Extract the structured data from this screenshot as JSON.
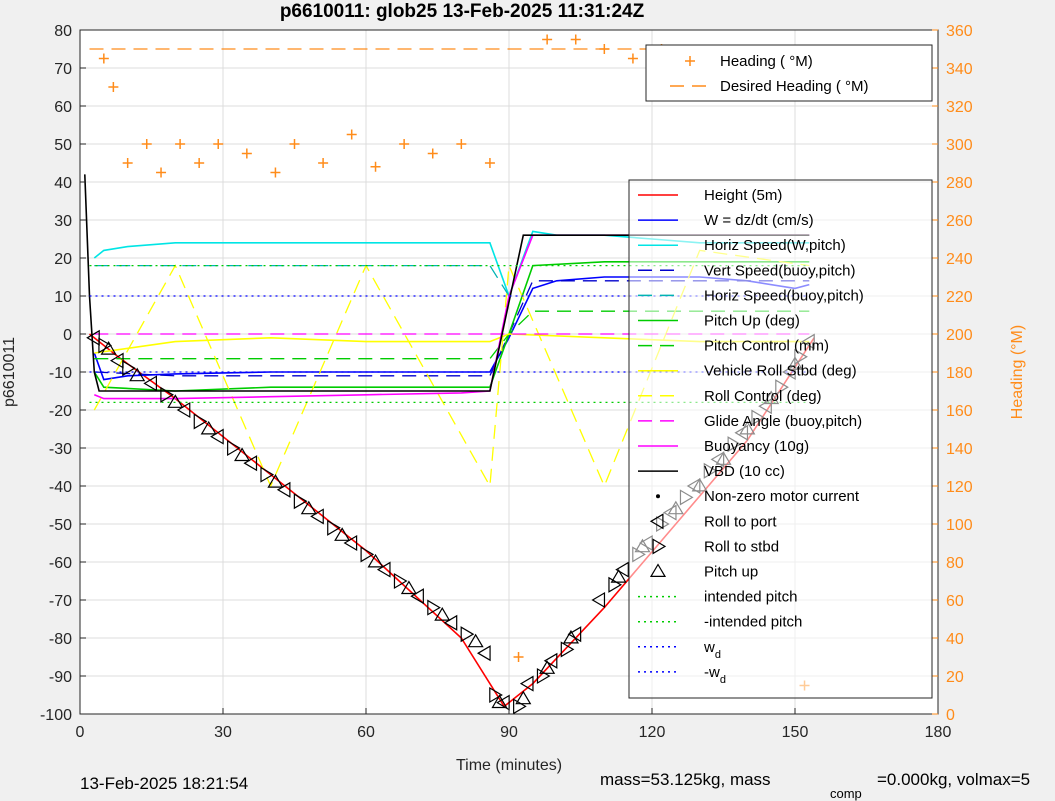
{
  "chart_data": {
    "type": "line",
    "title": "p6610011: glob25 13-Feb-2025 11:31:24Z",
    "xlabel": "Time (minutes)",
    "ylabel": "p6610011",
    "y2label": "Heading (°M)",
    "xlim": [
      0,
      180
    ],
    "ylim": [
      -100,
      80
    ],
    "y2lim": [
      0,
      360
    ],
    "x_ticks": [
      "0",
      "30",
      "60",
      "90",
      "120",
      "150",
      "180"
    ],
    "y_ticks": [
      "-100",
      "-90",
      "-80",
      "-70",
      "-60",
      "-50",
      "-40",
      "-30",
      "-20",
      "-10",
      "0",
      "10",
      "20",
      "30",
      "40",
      "50",
      "60",
      "70",
      "80"
    ],
    "y2_ticks": [
      "0",
      "20",
      "40",
      "60",
      "80",
      "100",
      "120",
      "140",
      "160",
      "180",
      "200",
      "220",
      "240",
      "260",
      "280",
      "300",
      "320",
      "340",
      "360"
    ],
    "grid": true,
    "series": [
      {
        "name": "Height (5m)",
        "color": "#ff0000",
        "style": "solid",
        "x": [
          2,
          8,
          20,
          40,
          60,
          80,
          89,
          95,
          110,
          125,
          140,
          154
        ],
        "y": [
          0,
          -6,
          -17,
          -37,
          -57,
          -80,
          -98,
          -92,
          -72,
          -50,
          -28,
          -1
        ]
      },
      {
        "name": "W = dz/dt (cm/s)",
        "color": "#0000ff",
        "style": "solid",
        "x": [
          3,
          5,
          10,
          20,
          40,
          60,
          80,
          86,
          90,
          95,
          100,
          110,
          120,
          130,
          140,
          150,
          153
        ],
        "y": [
          -5,
          -12,
          -11,
          -10.5,
          -10,
          -10,
          -10,
          -10,
          -1,
          12,
          14,
          15,
          15,
          15,
          14,
          12,
          13
        ]
      },
      {
        "name": "Horiz Speed(W,pitch)",
        "color": "#00e5e5",
        "style": "solid",
        "x": [
          3,
          5,
          10,
          20,
          40,
          60,
          80,
          86,
          90,
          95,
          100,
          110,
          120,
          130,
          140,
          150,
          153
        ],
        "y": [
          20,
          22,
          23,
          24,
          24,
          24,
          24,
          24,
          10,
          27,
          26,
          26,
          25,
          24,
          24,
          24,
          24
        ]
      },
      {
        "name": "Vert Speed(buoy,pitch)",
        "color": "#0000cc",
        "style": "dashed",
        "x": [
          3,
          20,
          86,
          90,
          95,
          153
        ],
        "y": [
          -10,
          -11,
          -11,
          0,
          14,
          14
        ]
      },
      {
        "name": "Horiz Speed(buoy,pitch)",
        "color": "#00b3b3",
        "style": "dashed",
        "x": [
          3,
          20,
          86,
          90,
          95,
          153
        ],
        "y": [
          18,
          18,
          18,
          10,
          26,
          26
        ]
      },
      {
        "name": "Pitch Up (deg)",
        "color": "#00cc00",
        "style": "solid",
        "x": [
          3,
          5,
          20,
          40,
          60,
          86,
          90,
          95,
          110,
          130,
          153
        ],
        "y": [
          -10,
          -14,
          -15,
          -14,
          -14,
          -14,
          0,
          18,
          19,
          19,
          19
        ]
      },
      {
        "name": "Pitch Control (mm)",
        "color": "#00cc00",
        "style": "dashed",
        "x": [
          3,
          86,
          90,
          95,
          153
        ],
        "y": [
          -6.5,
          -6.5,
          0,
          6,
          6
        ]
      },
      {
        "name": "Vehicle Roll Stbd (deg)",
        "color": "#ffff00",
        "style": "solid",
        "x": [
          3,
          20,
          40,
          60,
          86,
          90,
          110,
          130,
          153
        ],
        "y": [
          -5,
          -2,
          -1,
          -2,
          -2,
          0,
          -1,
          -2,
          -2
        ]
      },
      {
        "name": "Roll Control (deg)",
        "color": "#ffff00",
        "style": "dashed",
        "x": [
          3,
          20,
          40,
          60,
          86,
          90,
          110,
          130,
          153
        ],
        "y": [
          -20,
          18,
          -40,
          18,
          -40,
          18,
          -40,
          22,
          18
        ]
      },
      {
        "name": "Glide Angle (buoy,pitch)",
        "color": "#ff00ff",
        "style": "dashed",
        "x": [
          3,
          86,
          153
        ],
        "y": [
          0,
          0,
          0
        ]
      },
      {
        "name": "Buoyancy (10g)",
        "color": "#ff00ff",
        "style": "solid",
        "x": [
          3,
          5,
          20,
          40,
          60,
          80,
          86,
          90,
          95,
          153
        ],
        "y": [
          -16,
          -17,
          -17,
          -16.5,
          -16,
          -15.5,
          -15,
          10,
          26,
          26
        ]
      },
      {
        "name": "VBD (10 cc)",
        "color": "#000000",
        "style": "solid",
        "x": [
          1,
          2,
          3,
          4,
          20,
          60,
          86,
          93,
          153
        ],
        "y": [
          42,
          10,
          -10,
          -15,
          -15,
          -15,
          -15,
          26,
          26
        ]
      },
      {
        "name": "Heading (°M)",
        "color": "#ff8c1a",
        "style": "markers",
        "axis": "right",
        "x": [
          5,
          7,
          10,
          14,
          17,
          21,
          25,
          29,
          35,
          41,
          45,
          51,
          57,
          62,
          68,
          74,
          80,
          86,
          92,
          98,
          104,
          110,
          116,
          122,
          128,
          134,
          140,
          146,
          152
        ],
        "y": [
          345,
          330,
          290,
          300,
          285,
          300,
          290,
          300,
          295,
          285,
          300,
          290,
          305,
          288,
          300,
          295,
          300,
          290,
          30,
          355,
          355,
          350,
          345,
          350,
          345,
          340,
          330,
          345,
          15
        ]
      },
      {
        "name": "Desired Heading (°M)",
        "color": "#ff8c1a",
        "style": "dashed",
        "axis": "right",
        "x": [
          2,
          153
        ],
        "y": [
          350,
          350
        ]
      },
      {
        "name": "intended pitch",
        "color": "#00cc00",
        "style": "dotted",
        "x": [
          2,
          153
        ],
        "y": [
          -18,
          -18
        ]
      },
      {
        "name": "-intended pitch",
        "color": "#00cc00",
        "style": "dotted",
        "x": [
          2,
          153
        ],
        "y": [
          18,
          18
        ]
      },
      {
        "name": "w_d",
        "color": "#0000ff",
        "style": "dotted",
        "x": [
          2,
          153
        ],
        "y": [
          -10,
          -10
        ]
      },
      {
        "name": "-w_d",
        "color": "#0000ff",
        "style": "dotted",
        "x": [
          2,
          153
        ],
        "y": [
          10,
          10
        ]
      }
    ],
    "markers": {
      "roll_to_port": {
        "x": [
          3,
          8,
          15,
          22,
          29,
          36,
          43,
          50,
          57,
          64,
          71,
          78,
          85,
          89,
          94,
          99,
          104,
          109,
          114,
          119,
          124,
          129,
          134,
          139,
          144,
          149,
          153
        ],
        "y": [
          -1,
          -7,
          -13,
          -20,
          -27,
          -34,
          -41,
          -48,
          -55,
          -62,
          -69,
          -76,
          -84,
          -97,
          -92,
          -86,
          -79,
          -70,
          -62,
          -55,
          -47,
          -40,
          -33,
          -26,
          -19,
          -10,
          -2
        ]
      },
      "roll_to_stbd": {
        "x": [
          5,
          10,
          18,
          25,
          32,
          39,
          46,
          53,
          60,
          67,
          74,
          81,
          87,
          92,
          97,
          102,
          112,
          117,
          122,
          127,
          132,
          137,
          142,
          147,
          151
        ],
        "y": [
          -3,
          -9,
          -16,
          -23,
          -30,
          -37,
          -44,
          -51,
          -58,
          -65,
          -72,
          -79,
          -95,
          -98,
          -90,
          -83,
          -66,
          -58,
          -50,
          -43,
          -36,
          -29,
          -22,
          -14,
          -6
        ]
      },
      "pitch_up": {
        "x": [
          6,
          12,
          20,
          27,
          34,
          41,
          48,
          55,
          62,
          69,
          76,
          83,
          88,
          93,
          98,
          103,
          113,
          118,
          125,
          130,
          135,
          140,
          145,
          150
        ],
        "y": [
          -4,
          -11,
          -18,
          -25,
          -32,
          -39,
          -46,
          -53,
          -60,
          -67,
          -74,
          -81,
          -97,
          -96,
          -88,
          -80,
          -64,
          -56,
          -46,
          -40,
          -33,
          -25,
          -17,
          -8
        ]
      }
    },
    "legend_position": "right",
    "legend2_position": "top-right"
  },
  "legend_main": [
    {
      "label": "Height (5m)",
      "color": "#ff0000",
      "style": "solid"
    },
    {
      "label": "W = dz/dt (cm/s)",
      "color": "#0000ff",
      "style": "solid"
    },
    {
      "label": "Horiz Speed(W,pitch)",
      "color": "#00e5e5",
      "style": "solid"
    },
    {
      "label": "Vert Speed(buoy,pitch)",
      "color": "#0000cc",
      "style": "dashed"
    },
    {
      "label": "Horiz Speed(buoy,pitch)",
      "color": "#00b3b3",
      "style": "dashed"
    },
    {
      "label": "Pitch Up (deg)",
      "color": "#00cc00",
      "style": "solid"
    },
    {
      "label": "Pitch Control (mm)",
      "color": "#00cc00",
      "style": "dashed"
    },
    {
      "label": "Vehicle Roll Stbd (deg)",
      "color": "#ffff00",
      "style": "solid"
    },
    {
      "label": "Roll Control (deg)",
      "color": "#ffff00",
      "style": "dashed"
    },
    {
      "label": "Glide Angle (buoy,pitch)",
      "color": "#ff00ff",
      "style": "dashed"
    },
    {
      "label": "Buoyancy (10g)",
      "color": "#ff00ff",
      "style": "solid"
    },
    {
      "label": "VBD (10 cc)",
      "color": "#000000",
      "style": "solid"
    },
    {
      "label": "Non-zero motor current",
      "color": "#000000",
      "style": "dot"
    },
    {
      "label": "Roll to port",
      "color": "#000000",
      "style": "tri-left"
    },
    {
      "label": "Roll to stbd",
      "color": "#000000",
      "style": "tri-right"
    },
    {
      "label": "Pitch up",
      "color": "#000000",
      "style": "tri-up"
    },
    {
      "label": "intended pitch",
      "color": "#00cc00",
      "style": "dotted"
    },
    {
      "label": "-intended pitch",
      "color": "#00cc00",
      "style": "dotted"
    },
    {
      "label": "w",
      "sub": "d",
      "color": "#0000ff",
      "style": "dotted"
    },
    {
      "label": "-w",
      "sub": "d",
      "color": "#0000ff",
      "style": "dotted"
    }
  ],
  "legend_heading": [
    {
      "label": "Heading (  °M)",
      "color": "#ff8c1a",
      "style": "plus"
    },
    {
      "label": "Desired Heading (    °M)",
      "color": "#ff8c1a",
      "style": "dashed"
    }
  ],
  "footer": {
    "timestamp": "13-Feb-2025 18:21:54",
    "mass_text": "mass=53.125kg, mass",
    "comp_sub": "comp",
    "mass_tail": "=0.000kg, volmax=5"
  },
  "colors": {
    "heading_axis": "#ff8c1a",
    "axis": "#262626",
    "grid": "#dcdcdc",
    "plot_bg": "#ffffff",
    "figure_bg": "#f0f0f0"
  }
}
